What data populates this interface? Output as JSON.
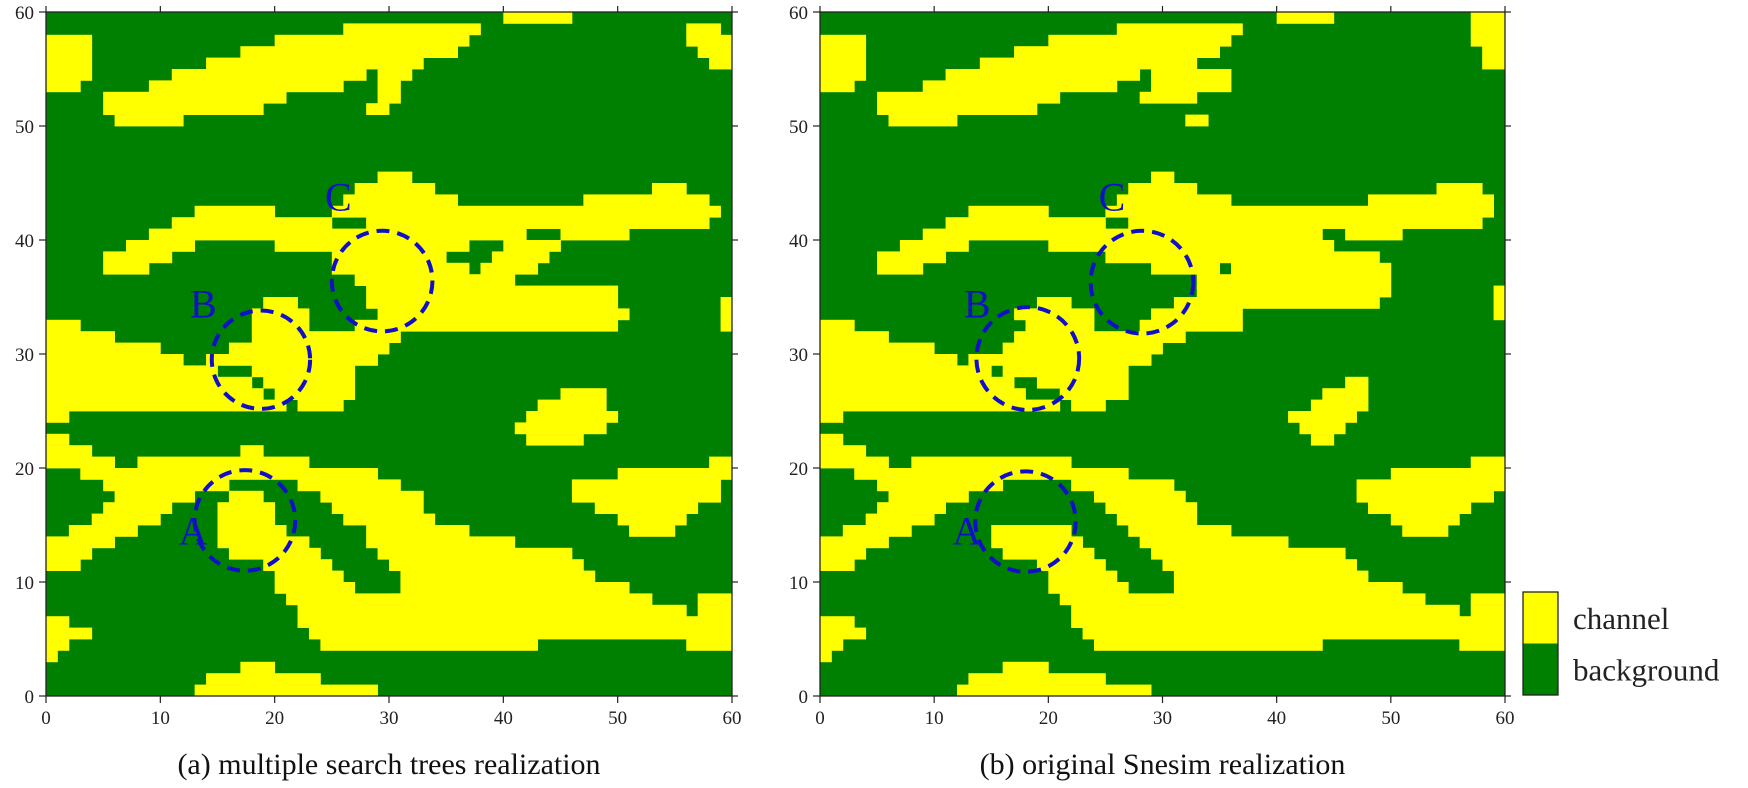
{
  "colors": {
    "channel": "#ffff00",
    "background": "#008000",
    "annotation": "#1010c8",
    "axis": "#222222"
  },
  "legend": {
    "placement": "right-bottom",
    "items": [
      {
        "key": "channel",
        "label": "channel"
      },
      {
        "key": "background",
        "label": "background"
      }
    ]
  },
  "chart_data": [
    {
      "type": "heatmap",
      "title": "(a) multiple search trees realization",
      "xlabel": "",
      "ylabel": "",
      "xlim": [
        0,
        60
      ],
      "ylim": [
        0,
        60
      ],
      "xticks": [
        0,
        10,
        20,
        30,
        40,
        50,
        60
      ],
      "yticks": [
        0,
        10,
        20,
        30,
        40,
        50,
        60
      ],
      "grid": false,
      "cell_size": 1,
      "values_note_categories": [
        "background",
        "channel"
      ],
      "channel_runs": [
        [
          59,
          40,
          45
        ],
        [
          58,
          26,
          37
        ],
        [
          58,
          56,
          58
        ],
        [
          57,
          0,
          3
        ],
        [
          57,
          20,
          36
        ],
        [
          57,
          56,
          59
        ],
        [
          56,
          0,
          3
        ],
        [
          56,
          17,
          35
        ],
        [
          56,
          57,
          59
        ],
        [
          55,
          0,
          3
        ],
        [
          55,
          14,
          32
        ],
        [
          55,
          58,
          59
        ],
        [
          54,
          0,
          3
        ],
        [
          54,
          11,
          27
        ],
        [
          54,
          29,
          31
        ],
        [
          53,
          0,
          2
        ],
        [
          53,
          9,
          25
        ],
        [
          53,
          29,
          30
        ],
        [
          52,
          5,
          20
        ],
        [
          52,
          29,
          30
        ],
        [
          51,
          5,
          18
        ],
        [
          51,
          28,
          29
        ],
        [
          50,
          6,
          11
        ],
        [
          45,
          29,
          31
        ],
        [
          44,
          27,
          33
        ],
        [
          44,
          53,
          55
        ],
        [
          43,
          26,
          35
        ],
        [
          43,
          47,
          57
        ],
        [
          42,
          13,
          19
        ],
        [
          42,
          25,
          58
        ],
        [
          41,
          11,
          24
        ],
        [
          41,
          28,
          57
        ],
        [
          40,
          9,
          41
        ],
        [
          40,
          45,
          50
        ],
        [
          39,
          7,
          12
        ],
        [
          39,
          20,
          36
        ],
        [
          39,
          40,
          44
        ],
        [
          38,
          5,
          10
        ],
        [
          38,
          25,
          34
        ],
        [
          38,
          39,
          43
        ],
        [
          37,
          5,
          8
        ],
        [
          37,
          25,
          36
        ],
        [
          37,
          38,
          42
        ],
        [
          36,
          27,
          40
        ],
        [
          35,
          28,
          49
        ],
        [
          34,
          19,
          21
        ],
        [
          34,
          28,
          49
        ],
        [
          34,
          59,
          59
        ],
        [
          33,
          18,
          22
        ],
        [
          33,
          29,
          50
        ],
        [
          33,
          59,
          59
        ],
        [
          32,
          0,
          2
        ],
        [
          32,
          18,
          22
        ],
        [
          32,
          27,
          49
        ],
        [
          32,
          59,
          59
        ],
        [
          31,
          0,
          5
        ],
        [
          31,
          18,
          30
        ],
        [
          30,
          0,
          9
        ],
        [
          30,
          16,
          29
        ],
        [
          29,
          0,
          11
        ],
        [
          29,
          14,
          28
        ],
        [
          28,
          0,
          14
        ],
        [
          28,
          18,
          26
        ],
        [
          27,
          0,
          17
        ],
        [
          27,
          19,
          26
        ],
        [
          26,
          0,
          18
        ],
        [
          26,
          20,
          26
        ],
        [
          26,
          45,
          48
        ],
        [
          25,
          0,
          20
        ],
        [
          25,
          22,
          25
        ],
        [
          25,
          43,
          48
        ],
        [
          24,
          0,
          1
        ],
        [
          24,
          42,
          49
        ],
        [
          23,
          41,
          48
        ],
        [
          22,
          0,
          1
        ],
        [
          22,
          42,
          46
        ],
        [
          21,
          0,
          3
        ],
        [
          21,
          17,
          18
        ],
        [
          20,
          0,
          5
        ],
        [
          20,
          8,
          22
        ],
        [
          20,
          58,
          59
        ],
        [
          19,
          3,
          28
        ],
        [
          19,
          50,
          59
        ],
        [
          18,
          5,
          15
        ],
        [
          18,
          22,
          30
        ],
        [
          18,
          46,
          58
        ],
        [
          17,
          6,
          12
        ],
        [
          17,
          16,
          18
        ],
        [
          17,
          24,
          32
        ],
        [
          17,
          46,
          58
        ],
        [
          16,
          5,
          10
        ],
        [
          16,
          15,
          19
        ],
        [
          16,
          25,
          32
        ],
        [
          16,
          48,
          56
        ],
        [
          15,
          4,
          9
        ],
        [
          15,
          15,
          19
        ],
        [
          15,
          26,
          33
        ],
        [
          15,
          50,
          55
        ],
        [
          14,
          2,
          7
        ],
        [
          14,
          15,
          20
        ],
        [
          14,
          28,
          36
        ],
        [
          14,
          51,
          54
        ],
        [
          13,
          0,
          5
        ],
        [
          13,
          15,
          22
        ],
        [
          13,
          28,
          40
        ],
        [
          12,
          0,
          3
        ],
        [
          12,
          16,
          23
        ],
        [
          12,
          29,
          45
        ],
        [
          11,
          0,
          2
        ],
        [
          11,
          19,
          24
        ],
        [
          11,
          30,
          46
        ],
        [
          10,
          20,
          25
        ],
        [
          10,
          31,
          47
        ],
        [
          9,
          20,
          26
        ],
        [
          9,
          31,
          50
        ],
        [
          8,
          21,
          30
        ],
        [
          8,
          30,
          52
        ],
        [
          8,
          57,
          59
        ],
        [
          7,
          22,
          55
        ],
        [
          7,
          57,
          59
        ],
        [
          6,
          0,
          1
        ],
        [
          6,
          22,
          59
        ],
        [
          5,
          0,
          3
        ],
        [
          5,
          23,
          59
        ],
        [
          4,
          0,
          1
        ],
        [
          4,
          24,
          42
        ],
        [
          4,
          56,
          59
        ],
        [
          3,
          0,
          0
        ],
        [
          2,
          17,
          19
        ],
        [
          1,
          14,
          23
        ],
        [
          0,
          13,
          28
        ]
      ],
      "annotations": [
        {
          "label": "A",
          "cx": 17.4,
          "cy": 15.4,
          "r": 4.4,
          "label_x": 11.6,
          "label_y": 13.3
        },
        {
          "label": "B",
          "cx": 18.8,
          "cy": 29.5,
          "r": 4.3,
          "label_x": 12.6,
          "label_y": 33.2
        },
        {
          "label": "C",
          "cx": 29.4,
          "cy": 36.4,
          "r": 4.4,
          "label_x": 24.4,
          "label_y": 42.6
        }
      ]
    },
    {
      "type": "heatmap",
      "title": "(b) original Snesim realization",
      "xlabel": "",
      "ylabel": "",
      "xlim": [
        0,
        60
      ],
      "ylim": [
        0,
        60
      ],
      "xticks": [
        0,
        10,
        20,
        30,
        40,
        50,
        60
      ],
      "yticks": [
        0,
        10,
        20,
        30,
        40,
        50,
        60
      ],
      "grid": false,
      "cell_size": 1,
      "channel_runs": [
        [
          59,
          40,
          44
        ],
        [
          59,
          57,
          59
        ],
        [
          58,
          26,
          36
        ],
        [
          58,
          57,
          59
        ],
        [
          57,
          0,
          3
        ],
        [
          57,
          20,
          35
        ],
        [
          57,
          57,
          59
        ],
        [
          56,
          0,
          3
        ],
        [
          56,
          17,
          34
        ],
        [
          56,
          58,
          59
        ],
        [
          55,
          0,
          3
        ],
        [
          55,
          14,
          32
        ],
        [
          55,
          58,
          59
        ],
        [
          54,
          0,
          3
        ],
        [
          54,
          11,
          27
        ],
        [
          54,
          29,
          35
        ],
        [
          53,
          0,
          2
        ],
        [
          53,
          9,
          25
        ],
        [
          53,
          29,
          35
        ],
        [
          52,
          5,
          20
        ],
        [
          52,
          28,
          32
        ],
        [
          51,
          5,
          18
        ],
        [
          50,
          6,
          11
        ],
        [
          50,
          32,
          33
        ],
        [
          45,
          29,
          30
        ],
        [
          44,
          27,
          32
        ],
        [
          44,
          54,
          57
        ],
        [
          43,
          26,
          35
        ],
        [
          43,
          48,
          58
        ],
        [
          42,
          13,
          19
        ],
        [
          42,
          25,
          58
        ],
        [
          41,
          11,
          24
        ],
        [
          41,
          27,
          57
        ],
        [
          40,
          9,
          43
        ],
        [
          40,
          46,
          50
        ],
        [
          39,
          7,
          12
        ],
        [
          39,
          20,
          44
        ],
        [
          38,
          5,
          10
        ],
        [
          38,
          25,
          48
        ],
        [
          37,
          5,
          8
        ],
        [
          37,
          29,
          34
        ],
        [
          37,
          36,
          49
        ],
        [
          36,
          33,
          49
        ],
        [
          35,
          33,
          49
        ],
        [
          35,
          59,
          59
        ],
        [
          34,
          19,
          21
        ],
        [
          34,
          31,
          48
        ],
        [
          34,
          59,
          59
        ],
        [
          33,
          17,
          23
        ],
        [
          33,
          29,
          36
        ],
        [
          33,
          59,
          59
        ],
        [
          32,
          0,
          2
        ],
        [
          32,
          18,
          23
        ],
        [
          32,
          28,
          36
        ],
        [
          31,
          0,
          5
        ],
        [
          31,
          17,
          31
        ],
        [
          30,
          0,
          9
        ],
        [
          30,
          16,
          29
        ],
        [
          29,
          0,
          11
        ],
        [
          29,
          13,
          28
        ],
        [
          28,
          0,
          14
        ],
        [
          28,
          16,
          26
        ],
        [
          27,
          0,
          16
        ],
        [
          27,
          19,
          26
        ],
        [
          27,
          46,
          47
        ],
        [
          26,
          0,
          17
        ],
        [
          26,
          21,
          26
        ],
        [
          26,
          44,
          47
        ],
        [
          25,
          0,
          20
        ],
        [
          25,
          22,
          24
        ],
        [
          25,
          43,
          47
        ],
        [
          24,
          0,
          1
        ],
        [
          24,
          41,
          46
        ],
        [
          23,
          42,
          45
        ],
        [
          22,
          0,
          1
        ],
        [
          22,
          43,
          44
        ],
        [
          21,
          0,
          3
        ],
        [
          20,
          0,
          5
        ],
        [
          20,
          8,
          21
        ],
        [
          20,
          57,
          59
        ],
        [
          19,
          3,
          26
        ],
        [
          19,
          50,
          59
        ],
        [
          18,
          5,
          15
        ],
        [
          18,
          22,
          30
        ],
        [
          18,
          47,
          59
        ],
        [
          17,
          6,
          12
        ],
        [
          17,
          24,
          31
        ],
        [
          17,
          47,
          58
        ],
        [
          16,
          5,
          10
        ],
        [
          16,
          25,
          32
        ],
        [
          16,
          48,
          56
        ],
        [
          15,
          4,
          9
        ],
        [
          15,
          26,
          32
        ],
        [
          15,
          50,
          55
        ],
        [
          14,
          2,
          7
        ],
        [
          14,
          15,
          21
        ],
        [
          14,
          27,
          35
        ],
        [
          14,
          51,
          54
        ],
        [
          13,
          0,
          5
        ],
        [
          13,
          15,
          22
        ],
        [
          13,
          28,
          40
        ],
        [
          12,
          0,
          3
        ],
        [
          12,
          16,
          23
        ],
        [
          12,
          29,
          45
        ],
        [
          11,
          0,
          2
        ],
        [
          11,
          19,
          24
        ],
        [
          11,
          30,
          46
        ],
        [
          10,
          20,
          25
        ],
        [
          10,
          31,
          47
        ],
        [
          9,
          20,
          26
        ],
        [
          9,
          31,
          50
        ],
        [
          8,
          21,
          30
        ],
        [
          8,
          30,
          52
        ],
        [
          8,
          57,
          59
        ],
        [
          7,
          22,
          55
        ],
        [
          7,
          57,
          59
        ],
        [
          6,
          0,
          2
        ],
        [
          6,
          22,
          59
        ],
        [
          5,
          0,
          3
        ],
        [
          5,
          23,
          59
        ],
        [
          4,
          0,
          1
        ],
        [
          4,
          24,
          43
        ],
        [
          4,
          56,
          59
        ],
        [
          3,
          0,
          0
        ],
        [
          2,
          16,
          19
        ],
        [
          1,
          13,
          24
        ],
        [
          0,
          12,
          28
        ]
      ],
      "annotations": [
        {
          "label": "A",
          "cx": 18.0,
          "cy": 15.3,
          "r": 4.4,
          "label_x": 11.6,
          "label_y": 13.3
        },
        {
          "label": "B",
          "cx": 18.2,
          "cy": 29.6,
          "r": 4.5,
          "label_x": 12.6,
          "label_y": 33.2
        },
        {
          "label": "C",
          "cx": 28.2,
          "cy": 36.3,
          "r": 4.5,
          "label_x": 24.4,
          "label_y": 42.6
        }
      ]
    }
  ]
}
